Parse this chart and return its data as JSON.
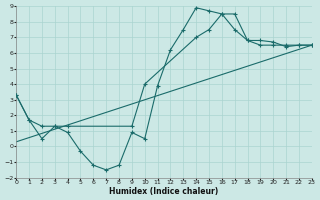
{
  "xlabel": "Humidex (Indice chaleur)",
  "bg_color": "#cce8e5",
  "grid_color": "#aad4d0",
  "line_color": "#1a6b6a",
  "xlim": [
    0,
    23
  ],
  "ylim": [
    -2,
    9
  ],
  "xticks": [
    0,
    1,
    2,
    3,
    4,
    5,
    6,
    7,
    8,
    9,
    10,
    11,
    12,
    13,
    14,
    15,
    16,
    17,
    18,
    19,
    20,
    21,
    22,
    23
  ],
  "yticks": [
    -2,
    -1,
    0,
    1,
    2,
    3,
    4,
    5,
    6,
    7,
    8,
    9
  ],
  "line1_x": [
    0,
    1,
    2,
    3,
    4,
    5,
    6,
    7,
    8,
    9,
    10,
    11,
    12,
    13,
    14,
    15,
    16,
    17,
    18,
    19,
    20,
    21,
    22,
    23
  ],
  "line1_y": [
    3.3,
    1.7,
    0.5,
    1.3,
    0.9,
    -0.3,
    -1.2,
    -1.5,
    -1.2,
    0.9,
    0.5,
    3.9,
    6.2,
    7.5,
    8.9,
    8.7,
    8.5,
    7.5,
    6.8,
    6.8,
    6.7,
    6.4,
    6.5,
    6.5
  ],
  "line2_x": [
    0,
    23
  ],
  "line2_y": [
    0.3,
    6.5
  ],
  "line3_x": [
    0,
    1,
    2,
    3,
    4,
    9,
    10,
    14,
    15,
    16,
    17,
    18,
    19,
    20,
    21,
    22,
    23
  ],
  "line3_y": [
    3.3,
    1.7,
    1.3,
    1.3,
    1.3,
    1.3,
    4.0,
    7.0,
    7.5,
    8.5,
    8.5,
    6.8,
    6.5,
    6.5,
    6.5,
    6.5,
    6.5
  ],
  "xlabel_fontsize": 5.5,
  "tick_fontsize": 4.5
}
